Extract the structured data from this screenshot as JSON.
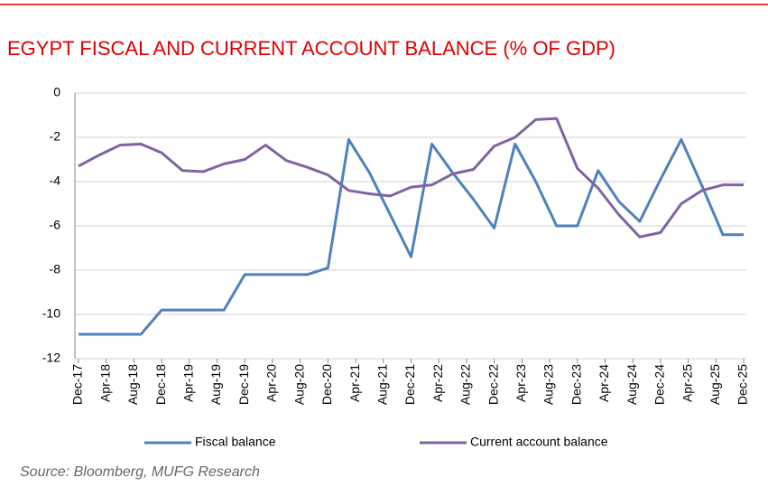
{
  "chart_data": {
    "type": "line",
    "title": "EGYPT FISCAL AND CURRENT ACCOUNT BALANCE (% OF GDP)",
    "source": "Source: Bloomberg, MUFG Research",
    "x": [
      0,
      3,
      6,
      9,
      12,
      15,
      18,
      21,
      24,
      27,
      30,
      33,
      36,
      39,
      42,
      45,
      48,
      51,
      54,
      57,
      60,
      63,
      66,
      69,
      72,
      75,
      78,
      81,
      84,
      87,
      90,
      93,
      96
    ],
    "xlim": [
      0,
      96
    ],
    "xticks": [
      {
        "value": 0,
        "label": "Dec-17"
      },
      {
        "value": 4,
        "label": "Apr-18"
      },
      {
        "value": 8,
        "label": "Aug-18"
      },
      {
        "value": 12,
        "label": "Dec-18"
      },
      {
        "value": 16,
        "label": "Apr-19"
      },
      {
        "value": 20,
        "label": "Aug-19"
      },
      {
        "value": 24,
        "label": "Dec-19"
      },
      {
        "value": 28,
        "label": "Apr-20"
      },
      {
        "value": 32,
        "label": "Aug-20"
      },
      {
        "value": 36,
        "label": "Dec-20"
      },
      {
        "value": 40,
        "label": "Apr-21"
      },
      {
        "value": 44,
        "label": "Aug-21"
      },
      {
        "value": 48,
        "label": "Dec-21"
      },
      {
        "value": 52,
        "label": "Apr-22"
      },
      {
        "value": 56,
        "label": "Aug-22"
      },
      {
        "value": 60,
        "label": "Dec-22"
      },
      {
        "value": 64,
        "label": "Apr-23"
      },
      {
        "value": 68,
        "label": "Aug-23"
      },
      {
        "value": 72,
        "label": "Dec-23"
      },
      {
        "value": 76,
        "label": "Apr-24"
      },
      {
        "value": 80,
        "label": "Aug-24"
      },
      {
        "value": 84,
        "label": "Dec-24"
      },
      {
        "value": 88,
        "label": "Apr-25"
      },
      {
        "value": 92,
        "label": "Aug-25"
      },
      {
        "value": 96,
        "label": "Dec-25"
      }
    ],
    "ylim": [
      -12,
      0
    ],
    "yticks": [
      0,
      -2,
      -4,
      -6,
      -8,
      -10,
      -12
    ],
    "grid": true,
    "legend": "bottom",
    "series": [
      {
        "name": "Fiscal balance",
        "color": "#4f81bd",
        "values": [
          -10.9,
          -10.9,
          -10.9,
          -10.9,
          -9.8,
          -9.8,
          -9.8,
          -9.8,
          -8.2,
          -8.2,
          -8.2,
          -8.2,
          -7.9,
          -2.1,
          -3.6,
          -5.5,
          -7.4,
          -2.3,
          -3.6,
          -4.8,
          -6.1,
          -2.3,
          -4.0,
          -6.0,
          -6.0,
          -3.5,
          -4.9,
          -5.8,
          -3.9,
          -2.1,
          -4.2,
          -6.4,
          -6.4
        ]
      },
      {
        "name": "Current account balance",
        "color": "#8064a2",
        "values": [
          -3.3,
          -2.8,
          -2.35,
          -2.3,
          -2.7,
          -3.5,
          -3.55,
          -3.2,
          -3.0,
          -2.35,
          -3.05,
          -3.35,
          -3.7,
          -4.4,
          -4.55,
          -4.65,
          -4.25,
          -4.15,
          -3.65,
          -3.45,
          -2.4,
          -2.0,
          -1.2,
          -1.15,
          -3.4,
          -4.3,
          -5.5,
          -6.5,
          -6.3,
          -5.0,
          -4.4,
          -4.15,
          -4.15
        ]
      }
    ]
  }
}
